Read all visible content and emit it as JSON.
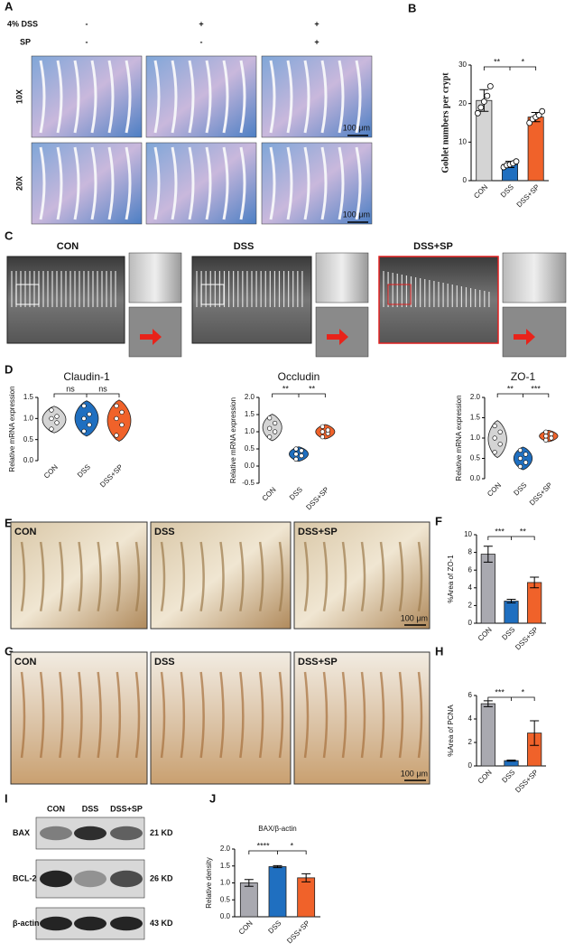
{
  "figure": {
    "panel_letters": [
      "A",
      "B",
      "C",
      "D",
      "E",
      "F",
      "G",
      "H",
      "I",
      "J"
    ],
    "panel_a": {
      "rows": [
        {
          "label": "4% DSS",
          "signs": [
            "-",
            "+",
            "+"
          ]
        },
        {
          "label": "SP",
          "signs": [
            "-",
            "-",
            "+"
          ]
        }
      ],
      "magnifications": [
        "10X",
        "20X"
      ],
      "scale_bar": "100 μm"
    },
    "panel_c": {
      "groups": [
        "CON",
        "DSS",
        "DSS+SP"
      ]
    },
    "panel_e": {
      "groups": [
        "CON",
        "DSS",
        "DSS+SP"
      ],
      "scale_bar": "100 μm"
    },
    "panel_g": {
      "groups": [
        "CON",
        "DSS",
        "DSS+SP"
      ],
      "scale_bar": "100 μm"
    },
    "panel_i": {
      "lanes": [
        "CON",
        "DSS",
        "DSS+SP"
      ],
      "proteins": [
        {
          "name": "BAX",
          "size": "21 KD"
        },
        {
          "name": "BCL-2",
          "size": "26 KD"
        },
        {
          "name": "β-actin",
          "size": "43 KD"
        }
      ]
    }
  },
  "chart_data": [
    {
      "type": "bar",
      "ylabel": "Goblet numbers per crypt",
      "categories": [
        "CON",
        "DSS",
        "DSS+SP"
      ],
      "values": [
        20.8,
        4.2,
        16.5
      ],
      "errors": [
        2.8,
        0.8,
        1.2
      ],
      "points": [
        [
          17.5,
          19,
          20.5,
          22,
          24.5
        ],
        [
          3.5,
          4,
          4.2,
          4.5,
          5
        ],
        [
          15,
          16,
          16.5,
          17,
          18
        ]
      ],
      "colors": [
        "#d4d4d4",
        "#1f6fc0",
        "#f0622a"
      ],
      "ylim": [
        0,
        30
      ],
      "yticks": [
        0,
        10,
        20,
        30
      ],
      "significance": [
        "**",
        "*"
      ]
    },
    {
      "type": "violin",
      "title": "Claudin-1",
      "ylabel": "Relative mRNA expression",
      "categories": [
        "CON",
        "DSS",
        "DSS+SP"
      ],
      "points": [
        [
          0.75,
          0.9,
          1.0,
          1.05,
          1.2
        ],
        [
          0.7,
          0.85,
          1.0,
          1.1,
          1.3
        ],
        [
          0.6,
          0.85,
          1.0,
          1.15,
          1.3
        ]
      ],
      "colors": [
        "#d4d4d4",
        "#1f6fc0",
        "#f0622a"
      ],
      "ylim": [
        0,
        1.5
      ],
      "yticks": [
        {
          "value": 0,
          "label": "0.0"
        },
        0.5,
        {
          "value": 1,
          "label": "1.0"
        },
        1.5
      ],
      "significance": [
        "ns",
        "ns"
      ]
    },
    {
      "type": "violin",
      "title": "Occludin",
      "ylabel": "Relative mRNA expression",
      "categories": [
        "CON",
        "DSS",
        "DSS+SP"
      ],
      "points": [
        [
          0.85,
          1.0,
          1.1,
          1.25,
          1.4
        ],
        [
          0.2,
          0.3,
          0.35,
          0.45,
          0.5
        ],
        [
          0.85,
          0.95,
          1.0,
          1.05,
          1.15
        ]
      ],
      "colors": [
        "#d4d4d4",
        "#1f6fc0",
        "#f0622a"
      ],
      "ylim": [
        -0.5,
        2
      ],
      "yticks": [
        -0.5,
        {
          "value": 0,
          "label": "0.0"
        },
        0.5,
        {
          "value": 1,
          "label": "1.0"
        },
        1.5,
        {
          "value": 2,
          "label": "2.0"
        }
      ],
      "significance": [
        "**",
        "**"
      ]
    },
    {
      "type": "violin",
      "title": "ZO-1",
      "ylabel": "Relative mRNA expression",
      "categories": [
        "CON",
        "DSS",
        "DSS+SP"
      ],
      "points": [
        [
          0.65,
          0.85,
          1.0,
          1.15,
          1.3
        ],
        [
          0.3,
          0.4,
          0.5,
          0.6,
          0.7
        ],
        [
          0.95,
          1.0,
          1.05,
          1.1,
          1.15
        ]
      ],
      "colors": [
        "#d4d4d4",
        "#1f6fc0",
        "#f0622a"
      ],
      "ylim": [
        0,
        2
      ],
      "yticks": [
        {
          "value": 0,
          "label": "0.0"
        },
        0.5,
        {
          "value": 1,
          "label": "1.0"
        },
        1.5,
        {
          "value": 2,
          "label": "2.0"
        }
      ],
      "significance": [
        "**",
        "***"
      ]
    },
    {
      "type": "bar",
      "ylabel": "%Area of ZO-1",
      "categories": [
        "CON",
        "DSS",
        "DSS+SP"
      ],
      "values": [
        7.8,
        2.5,
        4.6
      ],
      "errors": [
        0.9,
        0.2,
        0.6
      ],
      "colors": [
        "#a9a9b0",
        "#1f6fc0",
        "#f0622a"
      ],
      "ylim": [
        0,
        10
      ],
      "yticks": [
        0,
        2,
        4,
        6,
        8,
        10
      ],
      "significance": [
        "***",
        "**"
      ]
    },
    {
      "type": "bar",
      "ylabel": "%Area of PCNA",
      "categories": [
        "CON",
        "DSS",
        "DSS+SP"
      ],
      "values": [
        5.3,
        0.45,
        2.8
      ],
      "errors": [
        0.25,
        0.05,
        1.05
      ],
      "colors": [
        "#a9a9b0",
        "#1f6fc0",
        "#f0622a"
      ],
      "ylim": [
        0,
        6
      ],
      "yticks": [
        0,
        2,
        4,
        6
      ],
      "significance": [
        "***",
        "*"
      ]
    },
    {
      "type": "bar",
      "title": "BAX/β-actin",
      "ylabel": "Relative density",
      "categories": [
        "CON",
        "DSS",
        "DSS+SP"
      ],
      "values": [
        1.0,
        1.48,
        1.15
      ],
      "errors": [
        0.1,
        0.03,
        0.12
      ],
      "colors": [
        "#a9a9b0",
        "#1f6fc0",
        "#f0622a"
      ],
      "ylim": [
        0,
        2
      ],
      "yticks": [
        {
          "value": 0,
          "label": "0.0"
        },
        0.5,
        {
          "value": 1,
          "label": "1.0"
        },
        1.5,
        {
          "value": 2,
          "label": "2.0"
        }
      ],
      "significance": [
        "****",
        "*"
      ]
    }
  ]
}
